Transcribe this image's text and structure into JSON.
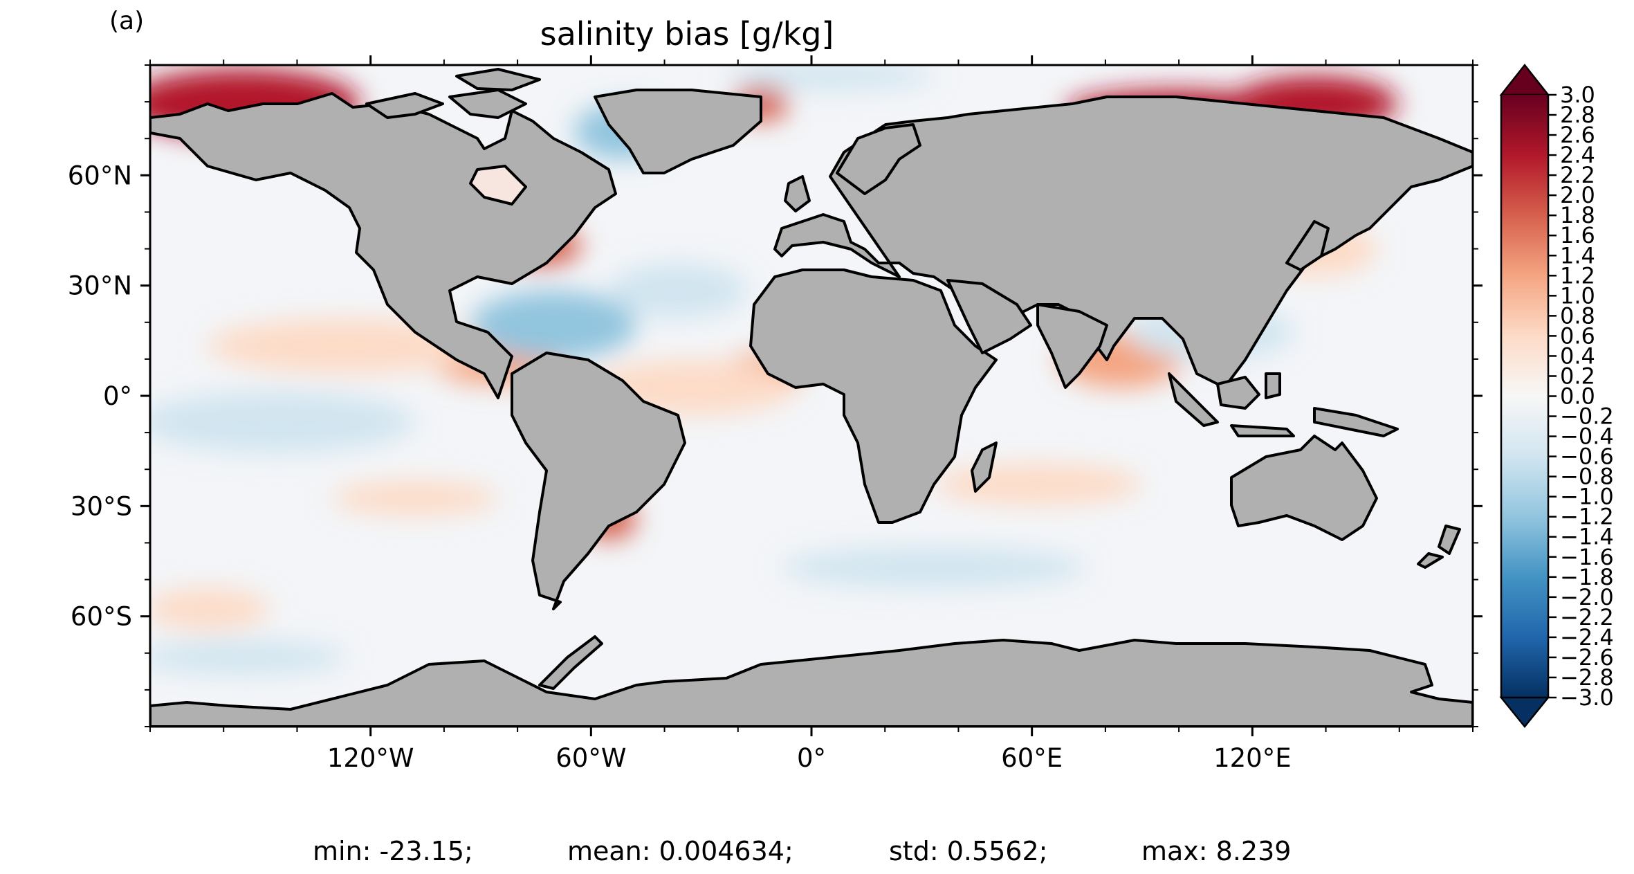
{
  "panel_label": "(a)",
  "title": "salinity bias [g/kg]",
  "map": {
    "projection": "PlateCarree",
    "lon_range": [
      -180,
      180
    ],
    "lat_range": [
      -90,
      90
    ],
    "land_color": "#b0b0b0",
    "coastline_color": "#000000",
    "lat_ticks": [
      {
        "value": 60,
        "label": "60°N"
      },
      {
        "value": 30,
        "label": "30°N"
      },
      {
        "value": 0,
        "label": "0°"
      },
      {
        "value": -30,
        "label": "30°S"
      },
      {
        "value": -60,
        "label": "60°S"
      }
    ],
    "lon_ticks": [
      {
        "value": -120,
        "label": "120°W"
      },
      {
        "value": -60,
        "label": "60°W"
      },
      {
        "value": 0,
        "label": "0°"
      },
      {
        "value": 60,
        "label": "60°E"
      },
      {
        "value": 120,
        "label": "120°E"
      }
    ]
  },
  "colorbar": {
    "colormap": "RdBu_r",
    "min": -3.0,
    "max": 3.0,
    "step": 0.2,
    "extend": "both",
    "tick_labels": [
      "3.0",
      "2.8",
      "2.6",
      "2.4",
      "2.2",
      "2.0",
      "1.8",
      "1.6",
      "1.4",
      "1.2",
      "1.0",
      "0.8",
      "0.6",
      "0.4",
      "0.2",
      "0.0",
      "−0.2",
      "−0.4",
      "−0.6",
      "−0.8",
      "−1.0",
      "−1.2",
      "−1.4",
      "−1.6",
      "−1.8",
      "−2.0",
      "−2.2",
      "−2.4",
      "−2.6",
      "−2.8",
      "−3.0"
    ],
    "colors": [
      "#053061",
      "#2166ac",
      "#4393c3",
      "#92c5de",
      "#d1e5f0",
      "#f7f7f7",
      "#fddbc7",
      "#f4a582",
      "#d6604d",
      "#b2182b",
      "#67001f"
    ]
  },
  "stats": {
    "min": "min: -23.15;",
    "mean": "mean: 0.004634;",
    "std": "std: 0.5562;",
    "max": "max: 8.239"
  }
}
